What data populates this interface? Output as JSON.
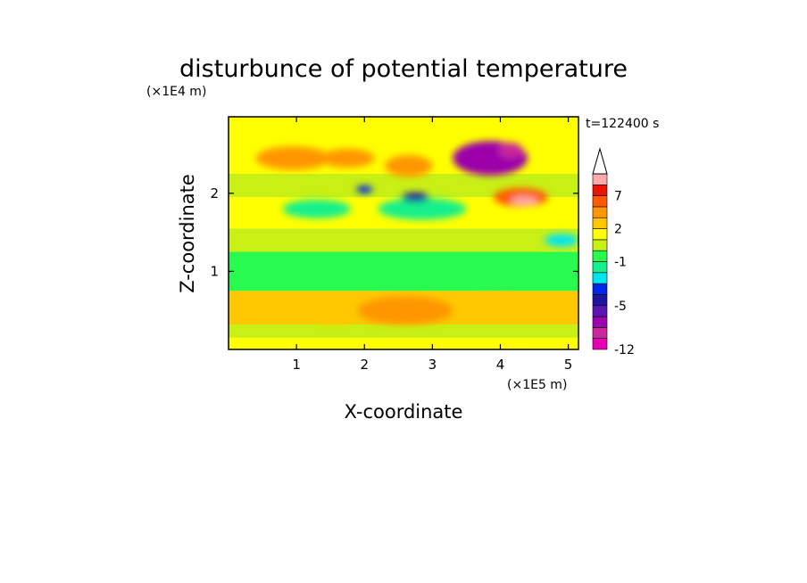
{
  "chart_data": {
    "type": "heatmap",
    "title": "disturbunce of potential temperature",
    "xlabel": "X-coordinate",
    "ylabel": "Z-coordinate",
    "x_unit": "(×1E5 m)",
    "y_unit": "(×1E4 m)",
    "time_label": "t=122400 s",
    "xlim": [
      0,
      5.15
    ],
    "ylim": [
      0,
      2.98
    ],
    "x_ticks": [
      1,
      2,
      3,
      4,
      5
    ],
    "y_ticks": [
      1,
      2
    ],
    "x_tick_labels": [
      "1",
      "2",
      "3",
      "4",
      "5"
    ],
    "y_tick_labels": [
      "1",
      "2"
    ],
    "colorbar": {
      "levels": [
        -12,
        -10,
        -8,
        -6,
        -5,
        -4,
        -3,
        -2,
        -1,
        0,
        1,
        2,
        3,
        5,
        7,
        9,
        11
      ],
      "labeled_ticks": [
        -12,
        -5,
        -1,
        2,
        7
      ],
      "tick_labels": [
        "-12",
        "-5",
        "-1",
        "2",
        "7"
      ],
      "colors": [
        "#e600b4",
        "#c8289b",
        "#9b00aa",
        "#5a14b4",
        "#1e14a0",
        "#0028e6",
        "#00e6f0",
        "#14f08c",
        "#28fa50",
        "#c8f014",
        "#ffff00",
        "#ffc800",
        "#ff9600",
        "#ff5a00",
        "#e61400",
        "#ffaaaa"
      ],
      "extend_max": true
    },
    "features": [
      {
        "x": 3.85,
        "z": 2.45,
        "value": -7,
        "rx": 0.55,
        "rz": 0.22
      },
      {
        "x": 4.15,
        "z": 2.55,
        "value": -9,
        "rx": 0.18,
        "rz": 0.1
      },
      {
        "x": 3.55,
        "z": 2.4,
        "value": -8,
        "rx": 0.12,
        "rz": 0.08
      },
      {
        "x": 4.3,
        "z": 1.95,
        "value": 6,
        "rx": 0.4,
        "rz": 0.12
      },
      {
        "x": 4.35,
        "z": 1.9,
        "value": 9,
        "rx": 0.2,
        "rz": 0.06
      },
      {
        "x": 0.95,
        "z": 2.45,
        "value": 4,
        "rx": 0.55,
        "rz": 0.15
      },
      {
        "x": 1.75,
        "z": 2.45,
        "value": 3,
        "rx": 0.4,
        "rz": 0.12
      },
      {
        "x": 2.65,
        "z": 2.35,
        "value": 3,
        "rx": 0.35,
        "rz": 0.14
      },
      {
        "x": 1.3,
        "z": 1.8,
        "value": -2,
        "rx": 0.5,
        "rz": 0.12
      },
      {
        "x": 2.85,
        "z": 1.8,
        "value": -2,
        "rx": 0.65,
        "rz": 0.14
      },
      {
        "x": 2.75,
        "z": 1.95,
        "value": -5,
        "rx": 0.2,
        "rz": 0.06
      },
      {
        "x": 2.0,
        "z": 2.05,
        "value": -4,
        "rx": 0.12,
        "rz": 0.05
      },
      {
        "x": 2.6,
        "z": 0.5,
        "value": 3,
        "rx": 0.7,
        "rz": 0.18
      },
      {
        "x": 1.55,
        "z": 0.45,
        "value": 2,
        "rx": 0.3,
        "rz": 0.12
      },
      {
        "x": 3.95,
        "z": 0.55,
        "value": 2,
        "rx": 0.6,
        "rz": 0.14
      },
      {
        "x": 4.9,
        "z": 1.4,
        "value": -3,
        "rx": 0.25,
        "rz": 0.08
      }
    ]
  }
}
